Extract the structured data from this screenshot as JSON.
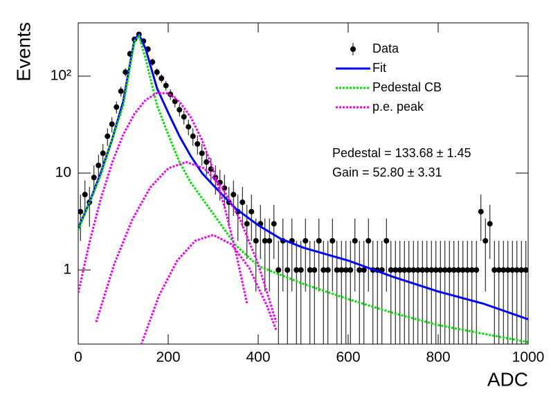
{
  "chart_data": {
    "type": "scatter",
    "xlabel": "ADC",
    "ylabel": "Events",
    "xlim": [
      0,
      1000
    ],
    "xticks": [
      0,
      200,
      400,
      600,
      800,
      1000
    ],
    "ylim": [
      0.172,
      355
    ],
    "yticks": [
      1,
      10,
      {
        "value": 100,
        "label": "10²"
      }
    ],
    "log_y": true,
    "legend": "upper right",
    "annotations": [
      "Pedestal = 133.68 ± 1.45",
      "Gain = 52.80 ± 3.31"
    ],
    "series": [
      {
        "name": "Data",
        "color": "#000000",
        "style": "points",
        "x": [
          5,
          15,
          25,
          35,
          45,
          55,
          65,
          75,
          85,
          95,
          105,
          115,
          125,
          135,
          145,
          155,
          165,
          175,
          185,
          195,
          205,
          215,
          225,
          235,
          245,
          255,
          265,
          275,
          285,
          295,
          305,
          315,
          325,
          335,
          345,
          355,
          365,
          375,
          385,
          395,
          405,
          415,
          425,
          435,
          445,
          455,
          465,
          475,
          485,
          495,
          505,
          515,
          525,
          535,
          545,
          555,
          565,
          575,
          585,
          595,
          605,
          615,
          625,
          635,
          645,
          655,
          665,
          675,
          685,
          695,
          705,
          715,
          725,
          735,
          745,
          755,
          765,
          775,
          785,
          795,
          805,
          815,
          825,
          835,
          845,
          855,
          865,
          875,
          885,
          895,
          905,
          915,
          925,
          935,
          945,
          955,
          965,
          975,
          985,
          995
        ],
        "values": [
          4,
          6,
          5,
          9,
          12,
          16,
          24,
          32,
          48,
          70,
          110,
          170,
          240,
          270,
          230,
          190,
          140,
          110,
          95,
          80,
          65,
          55,
          45,
          38,
          30,
          24,
          20,
          16,
          13,
          11,
          9,
          8,
          7,
          5,
          6,
          4,
          5,
          3,
          4,
          2,
          3,
          2,
          2,
          3,
          1,
          2,
          1,
          2,
          1,
          1,
          2,
          1,
          1,
          2,
          1,
          1,
          2,
          1,
          1,
          1,
          1,
          2,
          1,
          1,
          2,
          1,
          1,
          1,
          2,
          1,
          1,
          1,
          1,
          1,
          1,
          1,
          1,
          1,
          1,
          1,
          1,
          1,
          1,
          1,
          1,
          1,
          1,
          1,
          1,
          4,
          2,
          3,
          1,
          1,
          1,
          1,
          1,
          1,
          1,
          1
        ],
        "errors": [
          2,
          2.4,
          2.2,
          3,
          3.5,
          4,
          4.9,
          5.7,
          6.9,
          8.4,
          10.5,
          13,
          15.5,
          16.4,
          15.2,
          13.8,
          11.8,
          10.5,
          9.7,
          8.9,
          8.1,
          7.4,
          6.7,
          6.2,
          5.5,
          4.9,
          4.5,
          4,
          3.6,
          3.3,
          3,
          2.8,
          2.6,
          2.2,
          2.4,
          2,
          2.2,
          1.7,
          2,
          1.4,
          1.7,
          1.4,
          1.4,
          1.7,
          1,
          1.4,
          1,
          1.4,
          1,
          1,
          1.4,
          1,
          1,
          1.4,
          1,
          1,
          1.4,
          1,
          1,
          1,
          1,
          1.4,
          1,
          1,
          1.4,
          1,
          1,
          1,
          1.4,
          1,
          1,
          1,
          1,
          1,
          1,
          1,
          1,
          1,
          1,
          1,
          1,
          1,
          1,
          1,
          1,
          1,
          1,
          1,
          1,
          2,
          1.4,
          1.7,
          1,
          1,
          1,
          1,
          1,
          1,
          1,
          1
        ]
      },
      {
        "name": "Fit",
        "color": "#0000ff",
        "style": "line",
        "x": [
          0,
          25,
          50,
          75,
          100,
          125,
          135,
          150,
          175,
          200,
          225,
          250,
          275,
          300,
          350,
          400,
          450,
          500,
          600,
          700,
          800,
          900,
          1000
        ],
        "values": [
          2.7,
          5,
          10,
          22,
          55,
          240,
          270,
          190,
          75,
          42,
          24,
          15,
          10,
          7.5,
          4.3,
          2.9,
          2.1,
          1.7,
          1.25,
          0.85,
          0.6,
          0.45,
          0.31
        ]
      },
      {
        "name": "Pedestal CB",
        "color": "#00dd00",
        "style": "dotted",
        "x": [
          0,
          50,
          100,
          125,
          135,
          150,
          175,
          200,
          225,
          250,
          300,
          350,
          400,
          500,
          600,
          700,
          800,
          900,
          1000
        ],
        "values": [
          2.6,
          9.5,
          50,
          230,
          260,
          150,
          50,
          25,
          13,
          8,
          3.8,
          1.8,
          1.1,
          0.72,
          0.5,
          0.36,
          0.27,
          0.22,
          0.18
        ]
      },
      {
        "name": "p.e. peak",
        "color": "#ee00ee",
        "style": "dotted",
        "x": [
          0,
          25,
          50,
          75,
          100,
          125,
          150,
          175,
          200,
          225,
          250,
          275,
          300,
          325,
          350,
          375,
          null,
          40,
          80,
          120,
          160,
          200,
          240,
          280,
          320,
          360,
          400,
          440,
          null,
          140,
          180,
          220,
          260,
          300,
          340,
          380,
          420,
          440
        ],
        "values": [
          0.58,
          1.93,
          5.4,
          12.7,
          25,
          41,
          57,
          67,
          66.5,
          54.5,
          37.8,
          22,
          10.8,
          4.5,
          1.55,
          0.45,
          null,
          0.29,
          1.15,
          3.3,
          7.1,
          11.2,
          13,
          11.2,
          7.1,
          3.3,
          1.15,
          0.29,
          null,
          0.17,
          0.55,
          1.25,
          2,
          2.3,
          1.85,
          1.05,
          0.42,
          0.24
        ]
      }
    ]
  }
}
